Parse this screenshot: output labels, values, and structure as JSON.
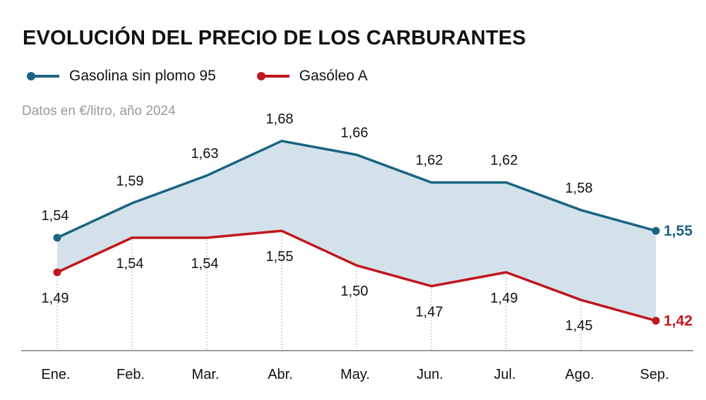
{
  "title": "EVOLUCIÓN DEL PRECIO DE LOS CARBURANTES",
  "subtitle": "Datos en €/litro, año 2024",
  "legend": [
    {
      "label": "Gasolina sin plomo 95",
      "color": "#1a6482"
    },
    {
      "label": "Gasóleo A",
      "color": "#c0161d"
    }
  ],
  "colors": {
    "band": "#d3e1ea",
    "axis": "#7d7d7d",
    "guide": "#9a9a9a"
  },
  "chart_data": {
    "type": "line",
    "categories": [
      "Ene.",
      "Feb.",
      "Mar.",
      "Abr.",
      "May.",
      "Jun.",
      "Jul.",
      "Ago.",
      "Sep."
    ],
    "series": [
      {
        "name": "Gasolina sin plomo 95",
        "color": "#1a6482",
        "values": [
          1.54,
          1.59,
          1.63,
          1.68,
          1.66,
          1.62,
          1.62,
          1.58,
          1.55
        ],
        "labels": [
          "1,54",
          "1,59",
          "1,63",
          "1,68",
          "1,66",
          "1,62",
          "1,62",
          "1,58",
          "1,55"
        ]
      },
      {
        "name": "Gasóleo A",
        "color": "#c0161d",
        "values": [
          1.49,
          1.54,
          1.54,
          1.55,
          1.5,
          1.47,
          1.49,
          1.45,
          1.42
        ],
        "labels": [
          "1,49",
          "1,54",
          "1,54",
          "1,55",
          "1,50",
          "1,47",
          "1,49",
          "1,45",
          "1,42"
        ]
      }
    ],
    "shaded_area_between_series": true,
    "ylim": [
      1.37,
      1.7
    ],
    "grid": false,
    "legend_position": "top-left"
  }
}
